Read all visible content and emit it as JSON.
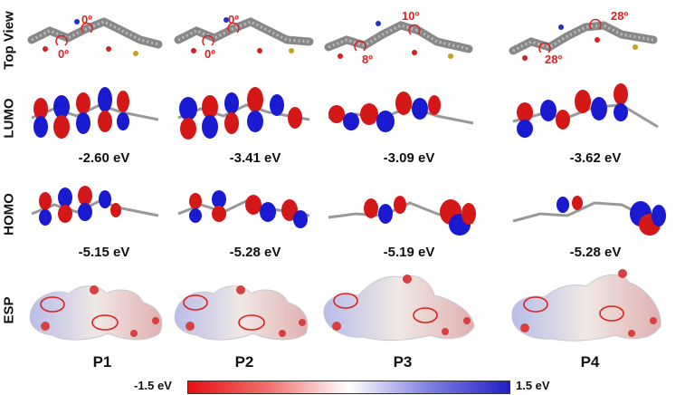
{
  "row_labels": [
    "Top View",
    "LUMO",
    "HOMO",
    "ESP"
  ],
  "panels": [
    {
      "name": "P1",
      "angle_a": "0º",
      "angle_b": "0º",
      "lumo": "-2.60 eV",
      "homo": "-5.15 eV"
    },
    {
      "name": "P2",
      "angle_a": "0º",
      "angle_b": "0º",
      "lumo": "-3.41 eV",
      "homo": "-5.28 eV"
    },
    {
      "name": "P3",
      "angle_a": "10º",
      "angle_b": "8º",
      "lumo": "-3.09 eV",
      "homo": "-5.19 eV"
    },
    {
      "name": "P4",
      "angle_a": "28º",
      "angle_b": "28º",
      "lumo": "-3.62 eV",
      "homo": "-5.28 eV"
    }
  ],
  "scale": {
    "min_label": "-1.5 eV",
    "max_label": "1.5 eV"
  },
  "colors": {
    "positive_lobe": "#d41818",
    "negative_lobe": "#1a1ad0",
    "angle_text": "#e02020"
  }
}
